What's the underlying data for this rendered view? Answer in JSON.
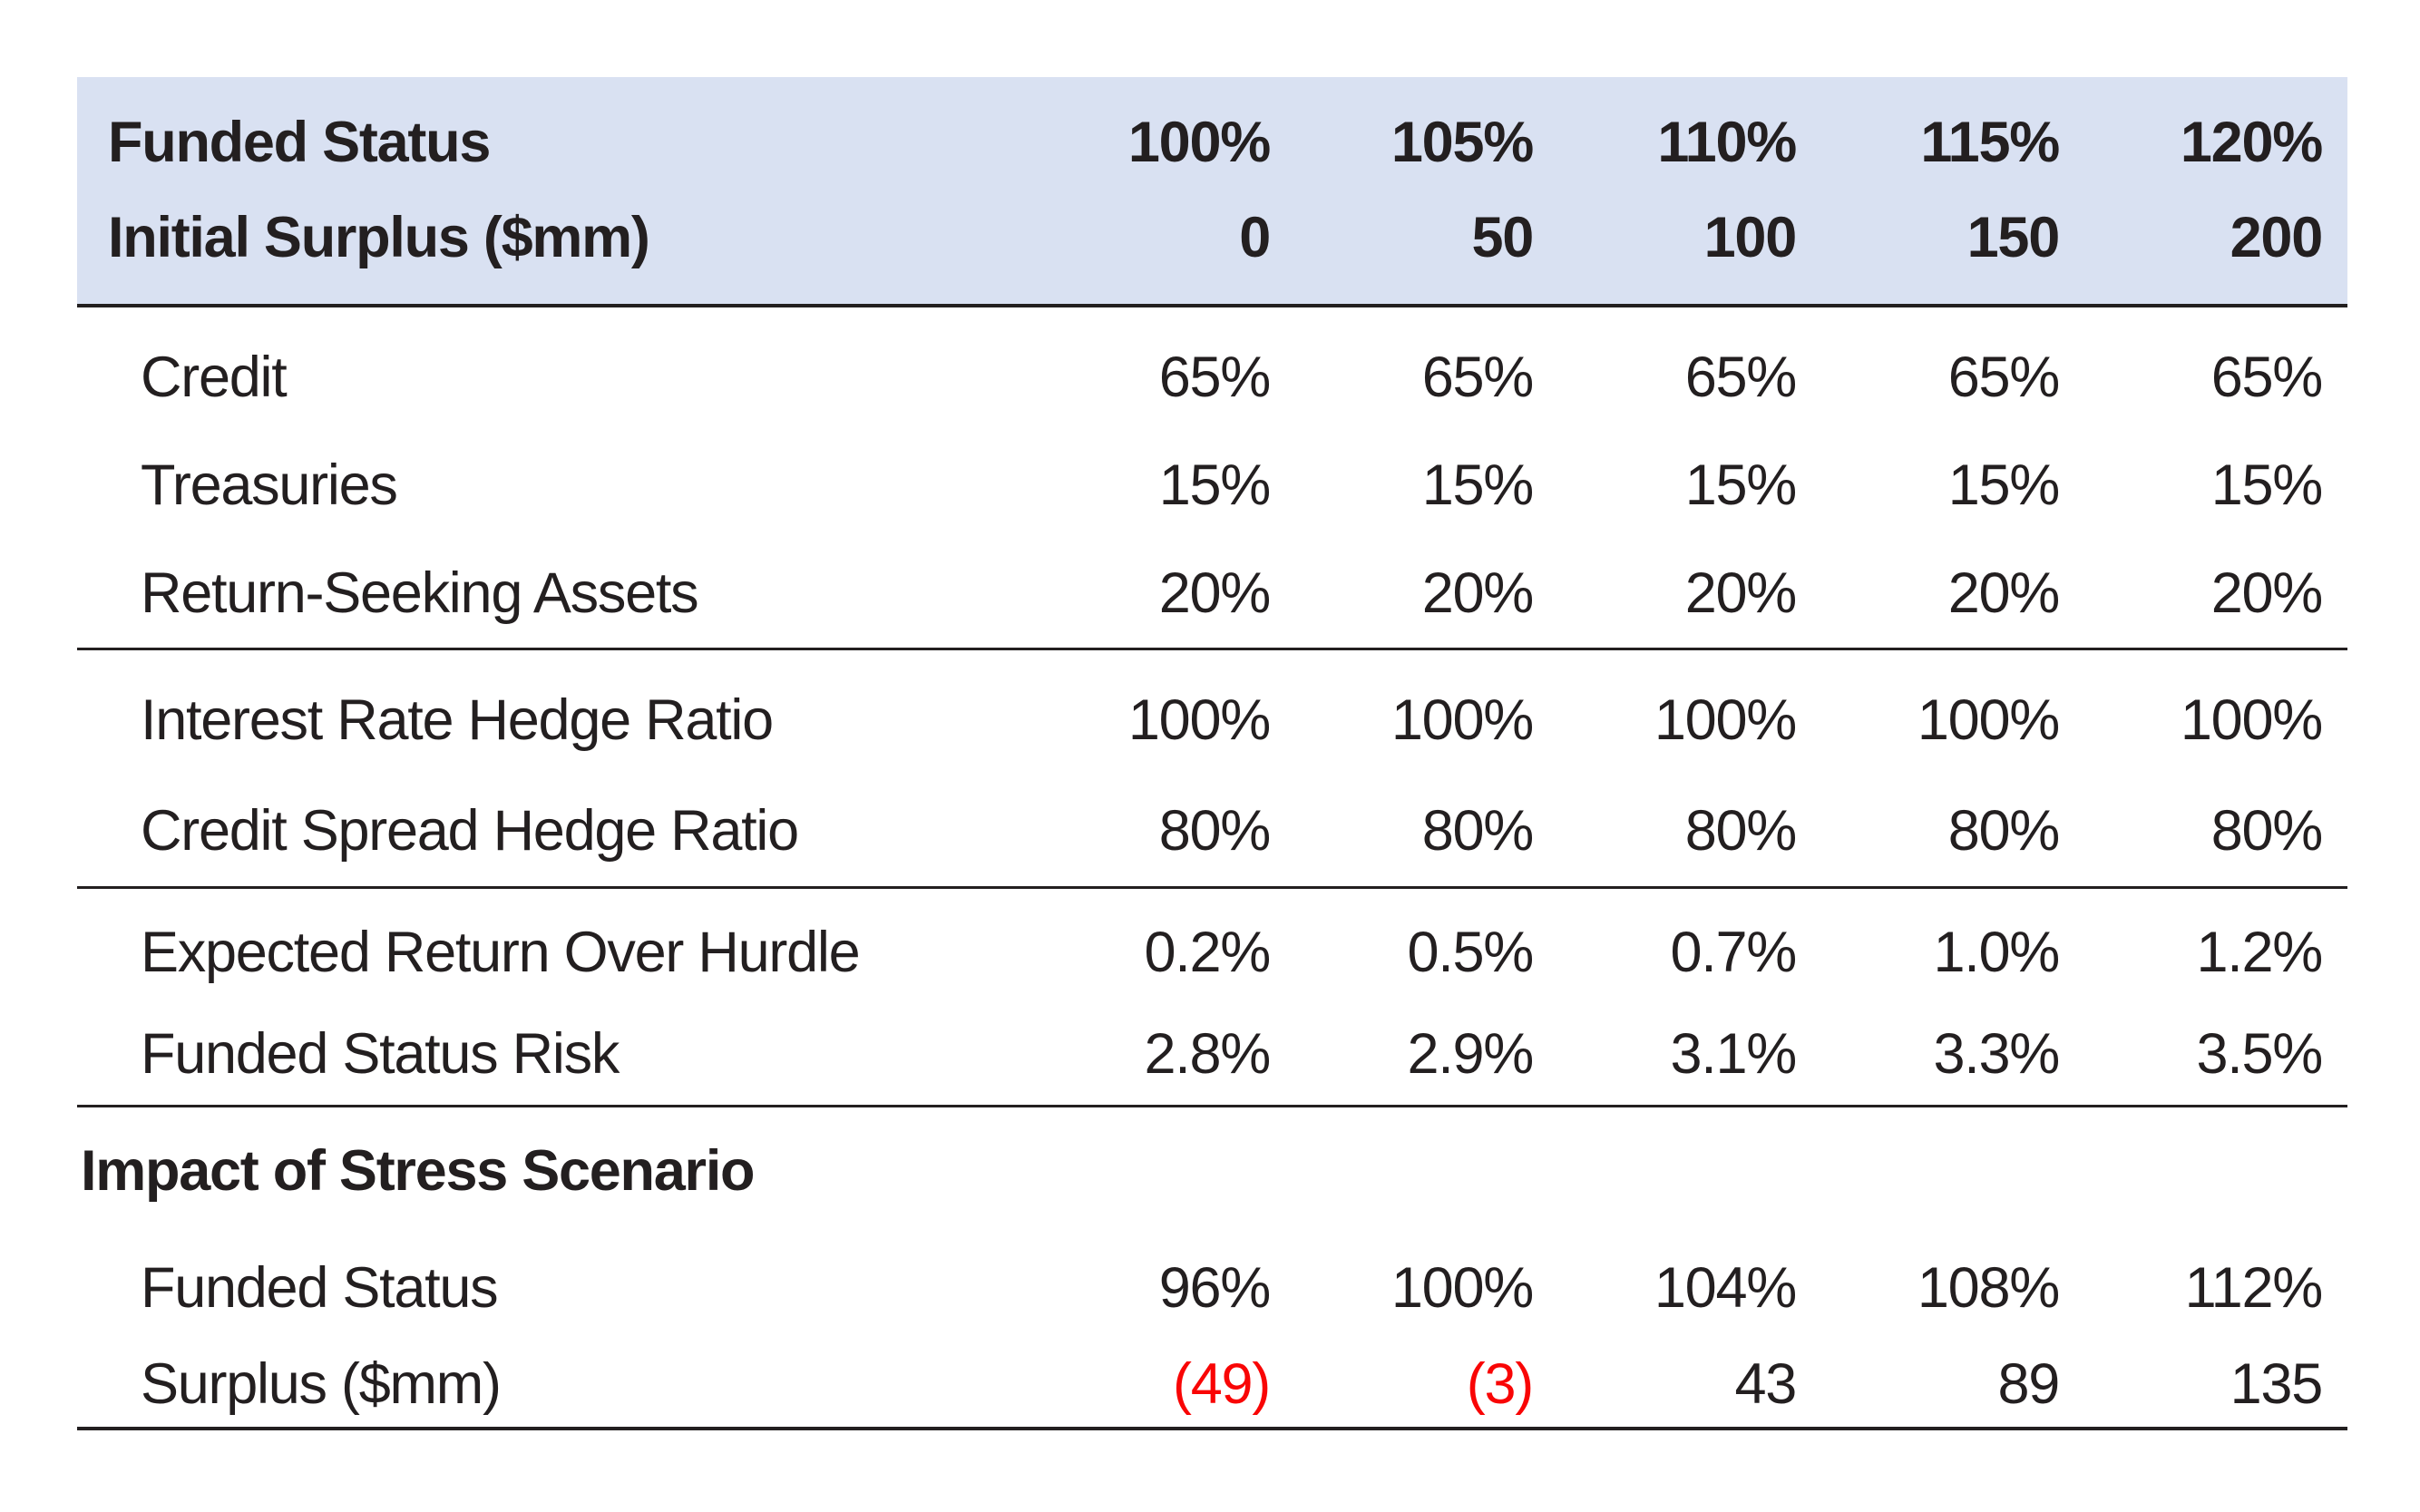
{
  "chart_data": {
    "type": "table",
    "header": {
      "rows": [
        {
          "label": "Funded Status",
          "values": [
            "100%",
            "105%",
            "110%",
            "115%",
            "120%"
          ]
        },
        {
          "label": "Initial Surplus ($mm)",
          "values": [
            "0",
            "50",
            "100",
            "150",
            "200"
          ]
        }
      ]
    },
    "groups": [
      {
        "name": "asset-allocation",
        "rows": [
          {
            "label": "Credit",
            "values": [
              "65%",
              "65%",
              "65%",
              "65%",
              "65%"
            ]
          },
          {
            "label": "Treasuries",
            "values": [
              "15%",
              "15%",
              "15%",
              "15%",
              "15%"
            ]
          },
          {
            "label": "Return-Seeking Assets",
            "values": [
              "20%",
              "20%",
              "20%",
              "20%",
              "20%"
            ]
          }
        ]
      },
      {
        "name": "hedge-ratios",
        "rows": [
          {
            "label": "Interest Rate Hedge Ratio",
            "values": [
              "100%",
              "100%",
              "100%",
              "100%",
              "100%"
            ]
          },
          {
            "label": "Credit Spread Hedge Ratio",
            "values": [
              "80%",
              "80%",
              "80%",
              "80%",
              "80%"
            ]
          }
        ]
      },
      {
        "name": "return-and-risk",
        "rows": [
          {
            "label": "Expected Return Over Hurdle",
            "values": [
              "0.2%",
              "0.5%",
              "0.7%",
              "1.0%",
              "1.2%"
            ]
          },
          {
            "label": "Funded Status Risk",
            "values": [
              "2.8%",
              "2.9%",
              "3.1%",
              "3.3%",
              "3.5%"
            ]
          }
        ]
      }
    ],
    "stress": {
      "title": "Impact of Stress Scenario",
      "rows": [
        {
          "label": "Funded Status",
          "values": [
            "96%",
            "100%",
            "104%",
            "108%",
            "112%"
          ],
          "negative": [
            false,
            false,
            false,
            false,
            false
          ]
        },
        {
          "label": "Surplus ($mm)",
          "values": [
            "(49)",
            "(3)",
            "43",
            "89",
            "135"
          ],
          "negative": [
            true,
            true,
            false,
            false,
            false
          ]
        }
      ]
    }
  },
  "colors": {
    "header_bg": "#d9e1f2",
    "text": "#231f20",
    "line": "#231f20",
    "negative": "#f90505"
  }
}
